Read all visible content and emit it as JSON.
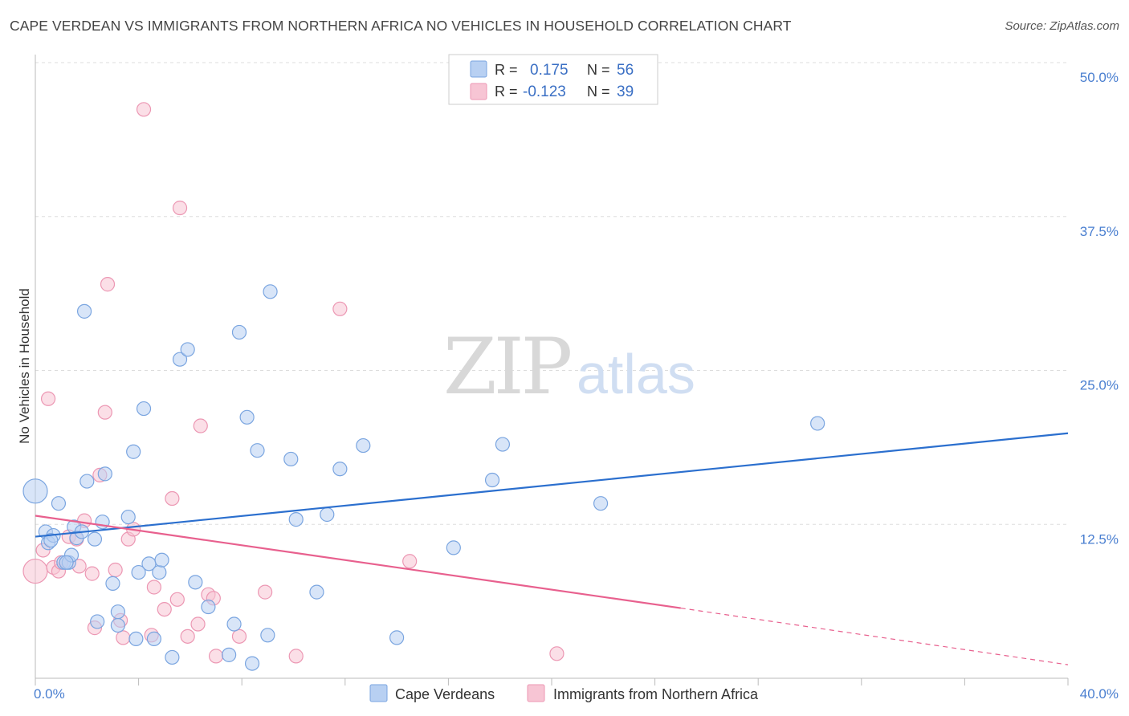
{
  "title": "CAPE VERDEAN VS IMMIGRANTS FROM NORTHERN AFRICA NO VEHICLES IN HOUSEHOLD CORRELATION CHART",
  "source": "Source: ZipAtlas.com",
  "watermark": {
    "zip": "ZIP",
    "atlas": "atlas"
  },
  "colors": {
    "blue_fill": "#b8d0f2",
    "blue_stroke": "#7aa5e0",
    "blue_line": "#2b6fce",
    "pink_fill": "#f7c5d4",
    "pink_stroke": "#ec97b3",
    "pink_line": "#e8608e",
    "grid": "#dddddd",
    "tick_label": "#4a7fd0"
  },
  "legend": {
    "rows": [
      {
        "r_label": "R =",
        "r_value": "0.175",
        "n_label": "N =",
        "n_value": "56"
      },
      {
        "r_label": "R =",
        "r_value": "-0.123",
        "n_label": "N =",
        "n_value": "39"
      }
    ]
  },
  "chart_data": {
    "type": "scatter",
    "title": "CAPE VERDEAN VS IMMIGRANTS FROM NORTHERN AFRICA NO VEHICLES IN HOUSEHOLD CORRELATION CHART",
    "xlabel": "",
    "ylabel": "No Vehicles in Household",
    "xlim": [
      0,
      40
    ],
    "ylim": [
      0,
      50
    ],
    "x_tick_labels": [
      "0.0%",
      "40.0%"
    ],
    "y_ticks": [
      12.5,
      25.0,
      37.5,
      50.0
    ],
    "y_tick_labels": [
      "12.5%",
      "25.0%",
      "37.5%",
      "50.0%"
    ],
    "grid": true,
    "legend_placement": "top-center",
    "series": [
      {
        "name": "Cape Verdeans",
        "r": 0.175,
        "n": 56,
        "trend": {
          "x": [
            0,
            40
          ],
          "y": [
            11.5,
            19.9
          ]
        },
        "points": [
          {
            "x": 0.0,
            "y": 15.2,
            "big": true
          },
          {
            "x": 0.4,
            "y": 11.9
          },
          {
            "x": 0.5,
            "y": 11.0
          },
          {
            "x": 0.7,
            "y": 11.6
          },
          {
            "x": 0.9,
            "y": 14.2
          },
          {
            "x": 1.1,
            "y": 9.4
          },
          {
            "x": 1.3,
            "y": 9.4
          },
          {
            "x": 1.4,
            "y": 10.0
          },
          {
            "x": 1.5,
            "y": 12.3
          },
          {
            "x": 1.6,
            "y": 11.4
          },
          {
            "x": 1.8,
            "y": 11.9
          },
          {
            "x": 1.9,
            "y": 29.8
          },
          {
            "x": 2.0,
            "y": 16.0
          },
          {
            "x": 2.3,
            "y": 11.3
          },
          {
            "x": 2.4,
            "y": 4.6
          },
          {
            "x": 2.6,
            "y": 12.7
          },
          {
            "x": 2.7,
            "y": 16.6
          },
          {
            "x": 3.0,
            "y": 7.7
          },
          {
            "x": 3.2,
            "y": 5.4
          },
          {
            "x": 3.2,
            "y": 4.3
          },
          {
            "x": 3.6,
            "y": 13.1
          },
          {
            "x": 3.8,
            "y": 18.4
          },
          {
            "x": 3.9,
            "y": 3.2
          },
          {
            "x": 4.0,
            "y": 8.6
          },
          {
            "x": 4.2,
            "y": 21.9
          },
          {
            "x": 4.4,
            "y": 9.3
          },
          {
            "x": 4.6,
            "y": 3.2
          },
          {
            "x": 4.8,
            "y": 8.6
          },
          {
            "x": 4.9,
            "y": 9.6
          },
          {
            "x": 5.3,
            "y": 1.7
          },
          {
            "x": 5.6,
            "y": 25.9
          },
          {
            "x": 5.9,
            "y": 26.7
          },
          {
            "x": 6.2,
            "y": 7.8
          },
          {
            "x": 6.7,
            "y": 5.8
          },
          {
            "x": 7.5,
            "y": 1.9
          },
          {
            "x": 7.7,
            "y": 4.4
          },
          {
            "x": 7.9,
            "y": 28.1
          },
          {
            "x": 8.2,
            "y": 21.2
          },
          {
            "x": 8.4,
            "y": 1.2
          },
          {
            "x": 8.6,
            "y": 18.5
          },
          {
            "x": 9.0,
            "y": 3.5
          },
          {
            "x": 9.1,
            "y": 31.4
          },
          {
            "x": 9.9,
            "y": 17.8
          },
          {
            "x": 10.1,
            "y": 12.9
          },
          {
            "x": 10.9,
            "y": 7.0
          },
          {
            "x": 11.3,
            "y": 13.3
          },
          {
            "x": 11.8,
            "y": 17.0
          },
          {
            "x": 12.7,
            "y": 18.9
          },
          {
            "x": 14.0,
            "y": 3.3
          },
          {
            "x": 16.2,
            "y": 10.6
          },
          {
            "x": 17.7,
            "y": 16.1
          },
          {
            "x": 18.1,
            "y": 19.0
          },
          {
            "x": 21.9,
            "y": 14.2
          },
          {
            "x": 30.3,
            "y": 20.7
          },
          {
            "x": 1.2,
            "y": 9.4
          },
          {
            "x": 0.6,
            "y": 11.2
          }
        ]
      },
      {
        "name": "Immigrants from Northern Africa",
        "r": -0.123,
        "n": 39,
        "trend": {
          "x": [
            0,
            25
          ],
          "y": [
            13.2,
            5.7
          ]
        },
        "trend_dashed": {
          "x": [
            25,
            40
          ],
          "y": [
            5.7,
            1.1
          ]
        },
        "points": [
          {
            "x": 0.0,
            "y": 8.7,
            "big": true
          },
          {
            "x": 0.3,
            "y": 10.4
          },
          {
            "x": 0.5,
            "y": 22.7
          },
          {
            "x": 0.7,
            "y": 9.0
          },
          {
            "x": 0.9,
            "y": 8.7
          },
          {
            "x": 1.0,
            "y": 9.4
          },
          {
            "x": 1.3,
            "y": 11.5
          },
          {
            "x": 1.6,
            "y": 11.3
          },
          {
            "x": 1.7,
            "y": 9.1
          },
          {
            "x": 1.9,
            "y": 12.8
          },
          {
            "x": 2.2,
            "y": 8.5
          },
          {
            "x": 2.3,
            "y": 4.1
          },
          {
            "x": 2.5,
            "y": 16.5
          },
          {
            "x": 2.7,
            "y": 21.6
          },
          {
            "x": 2.8,
            "y": 32.0
          },
          {
            "x": 3.1,
            "y": 8.8
          },
          {
            "x": 3.3,
            "y": 4.7
          },
          {
            "x": 3.4,
            "y": 3.3
          },
          {
            "x": 3.6,
            "y": 11.3
          },
          {
            "x": 3.8,
            "y": 12.1
          },
          {
            "x": 4.2,
            "y": 46.2
          },
          {
            "x": 4.5,
            "y": 3.5
          },
          {
            "x": 4.6,
            "y": 7.4
          },
          {
            "x": 5.0,
            "y": 5.6
          },
          {
            "x": 5.3,
            "y": 14.6
          },
          {
            "x": 5.5,
            "y": 6.4
          },
          {
            "x": 5.6,
            "y": 38.2
          },
          {
            "x": 5.9,
            "y": 3.4
          },
          {
            "x": 6.3,
            "y": 4.4
          },
          {
            "x": 6.4,
            "y": 20.5
          },
          {
            "x": 6.7,
            "y": 6.8
          },
          {
            "x": 6.9,
            "y": 6.5
          },
          {
            "x": 7.0,
            "y": 1.8
          },
          {
            "x": 7.9,
            "y": 3.4
          },
          {
            "x": 8.9,
            "y": 7.0
          },
          {
            "x": 10.1,
            "y": 1.8
          },
          {
            "x": 11.8,
            "y": 30.0
          },
          {
            "x": 14.5,
            "y": 9.5
          },
          {
            "x": 20.2,
            "y": 2.0
          }
        ]
      }
    ]
  }
}
